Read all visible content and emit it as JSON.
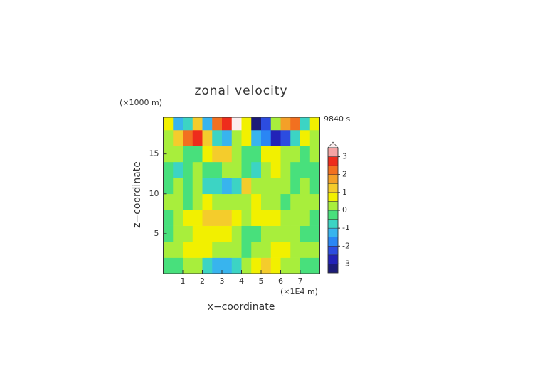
{
  "chart_data": {
    "type": "contour",
    "title": "zonal velocity",
    "y_unit_label": "(×1000 m)",
    "x_unit_label": "(×1E4 m)",
    "time_label": "9840 s",
    "xlabel": "x−coordinate",
    "ylabel": "z−coordinate",
    "xlim": [
      0,
      8
    ],
    "ylim": [
      0,
      19.6
    ],
    "xticks": [
      1,
      2,
      3,
      4,
      5,
      6,
      7
    ],
    "yticks": [
      5,
      10,
      15
    ],
    "x": [
      0.25,
      0.75,
      1.25,
      1.75,
      2.25,
      2.75,
      3.25,
      3.75,
      4.25,
      4.75,
      5.25,
      5.75,
      6.25,
      6.75,
      7.25,
      7.75
    ],
    "y": [
      1,
      3,
      5,
      7,
      9,
      11,
      13,
      15,
      17,
      19
    ],
    "values": [
      [
        -0.3,
        -0.3,
        0.2,
        0.3,
        -0.8,
        -1.2,
        -1.2,
        -0.6,
        0.3,
        0.8,
        1.0,
        0.8,
        0.4,
        0.2,
        -0.2,
        -0.3
      ],
      [
        0.2,
        0.4,
        0.8,
        0.7,
        0.5,
        0.3,
        0.2,
        0.0,
        -0.2,
        0.2,
        0.4,
        0.6,
        0.5,
        0.3,
        0.1,
        0.2
      ],
      [
        -0.4,
        0.3,
        0.4,
        0.6,
        0.8,
        0.8,
        0.6,
        0.3,
        -0.3,
        -0.2,
        0.2,
        0.3,
        0.3,
        0.1,
        -0.3,
        -0.4
      ],
      [
        -0.3,
        0.2,
        0.6,
        0.9,
        1.1,
        1.2,
        1.0,
        0.6,
        0.3,
        0.6,
        0.8,
        0.6,
        0.3,
        0.2,
        0.3,
        -0.2
      ],
      [
        0.3,
        0.2,
        -0.2,
        0.3,
        0.5,
        0.4,
        0.2,
        0.3,
        0.4,
        0.5,
        0.3,
        0.2,
        -0.3,
        0.2,
        0.3,
        0.2
      ],
      [
        -0.3,
        0.3,
        -0.3,
        0.2,
        -0.6,
        -1.0,
        -1.3,
        -0.8,
        1.0,
        0.4,
        0.2,
        0.3,
        0.2,
        -0.3,
        0.2,
        -0.2
      ],
      [
        -0.4,
        -0.6,
        -0.3,
        0.2,
        -0.2,
        -0.4,
        0.3,
        0.2,
        -0.3,
        -0.6,
        0.3,
        0.5,
        0.3,
        -0.2,
        -0.5,
        -0.3
      ],
      [
        0.2,
        0.3,
        -0.2,
        -0.3,
        0.6,
        1.2,
        1.0,
        0.3,
        -0.4,
        -0.3,
        0.5,
        0.8,
        0.3,
        0.2,
        -0.4,
        0.3
      ],
      [
        0.3,
        1.0,
        2.2,
        2.6,
        1.2,
        -0.6,
        -1.4,
        0.2,
        0.8,
        -1.2,
        -1.8,
        -2.6,
        -2.4,
        -0.8,
        0.8,
        0.3
      ],
      [
        0.8,
        -1.3,
        -0.6,
        1.2,
        -1.2,
        2.4,
        2.8,
        3.6,
        0.5,
        -3.2,
        -2.2,
        0.3,
        1.8,
        2.0,
        -1.0,
        0.6
      ]
    ],
    "colorbar": {
      "levels": [
        -3.5,
        -3,
        -2.5,
        -2,
        -1.5,
        -1,
        -0.5,
        0,
        0.5,
        1,
        1.5,
        2,
        2.5,
        3,
        3.5
      ],
      "colors": [
        "#1c1c78",
        "#2222b8",
        "#2c4ce0",
        "#2a86f4",
        "#38b4ee",
        "#3cd4c4",
        "#48e07c",
        "#a8ee3c",
        "#f2f000",
        "#f4cc2c",
        "#f4a028",
        "#f27020",
        "#ee2c1c",
        "#f4a4a4"
      ],
      "over_color": "#fbeeee",
      "ticks": [
        -3,
        -2,
        -1,
        0,
        1,
        2,
        3
      ]
    }
  }
}
